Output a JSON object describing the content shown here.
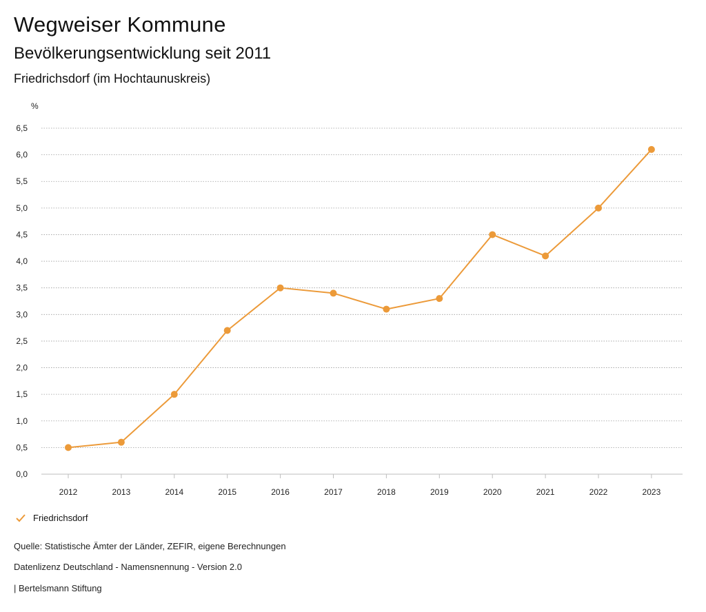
{
  "header": {
    "title": "Wegweiser Kommune",
    "subtitle": "Bevölkerungsentwicklung seit 2011",
    "region": "Friedrichsdorf (im Hochtaunuskreis)"
  },
  "colors": {
    "series": "#ec9a39",
    "grid": "#9a9a9a"
  },
  "chart_data": {
    "type": "line",
    "title": "Bevölkerungsentwicklung seit 2011",
    "ylabel": "%",
    "xlabel": "",
    "ylim": [
      0,
      6.5
    ],
    "yticks": [
      "0,0",
      "0,5",
      "1,0",
      "1,5",
      "2,0",
      "2,5",
      "3,0",
      "3,5",
      "4,0",
      "4,5",
      "5,0",
      "5,5",
      "6,0",
      "6,5"
    ],
    "x": [
      "2012",
      "2013",
      "2014",
      "2015",
      "2016",
      "2017",
      "2018",
      "2019",
      "2020",
      "2021",
      "2022",
      "2023"
    ],
    "series": [
      {
        "name": "Friedrichsdorf",
        "values": [
          0.5,
          0.6,
          1.5,
          2.7,
          3.5,
          3.4,
          3.1,
          3.3,
          4.5,
          4.1,
          5.0,
          6.1
        ]
      }
    ],
    "legend": "bottom-left"
  },
  "legend": {
    "label": "Friedrichsdorf",
    "icon": "check-icon"
  },
  "footer": {
    "source": "Quelle: Statistische Ämter der Länder, ZEFIR, eigene Berechnungen",
    "license": "Datenlizenz Deutschland - Namensnennung - Version 2.0",
    "publisher": "| Bertelsmann Stiftung"
  }
}
